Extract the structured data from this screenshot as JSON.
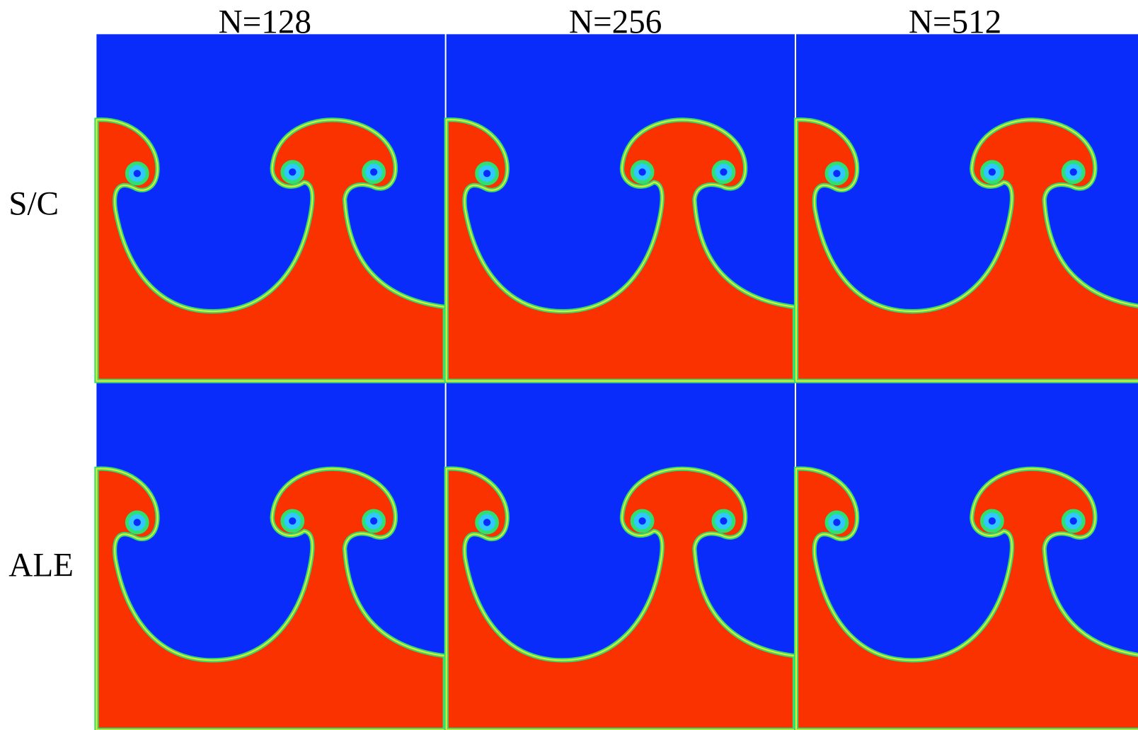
{
  "columns": [
    "N=128",
    "N=256",
    "N=512"
  ],
  "rows": [
    "S/C",
    "ALE"
  ]
}
